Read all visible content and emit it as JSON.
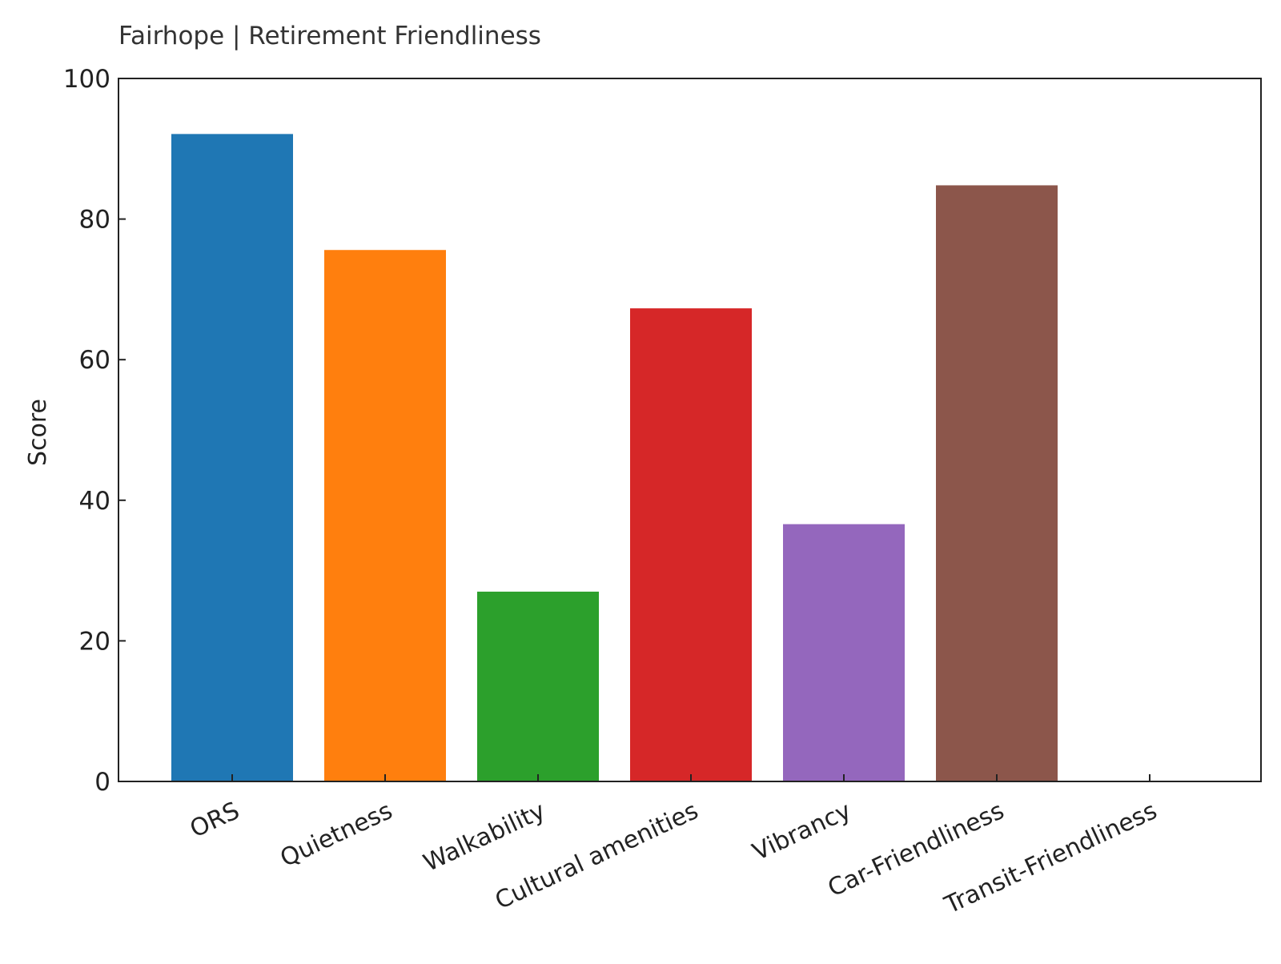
{
  "chart_data": {
    "type": "bar",
    "title": "Fairhope | Retirement Friendliness",
    "xlabel": "",
    "ylabel": "Score",
    "ylim": [
      0,
      100
    ],
    "yticks": [
      0,
      20,
      40,
      60,
      80,
      100
    ],
    "categories": [
      "ORS",
      "Quietness",
      "Walkability",
      "Cultural amenities",
      "Vibrancy",
      "Car-Friendliness",
      "Transit-Friendliness"
    ],
    "values": [
      92.1,
      75.6,
      27.0,
      67.3,
      36.6,
      84.8,
      0
    ],
    "colors": [
      "#1f77b4",
      "#ff7f0e",
      "#2ca02c",
      "#d62728",
      "#9467bd",
      "#8c564b",
      "#e377c2"
    ],
    "grid": false,
    "legend": "none"
  }
}
